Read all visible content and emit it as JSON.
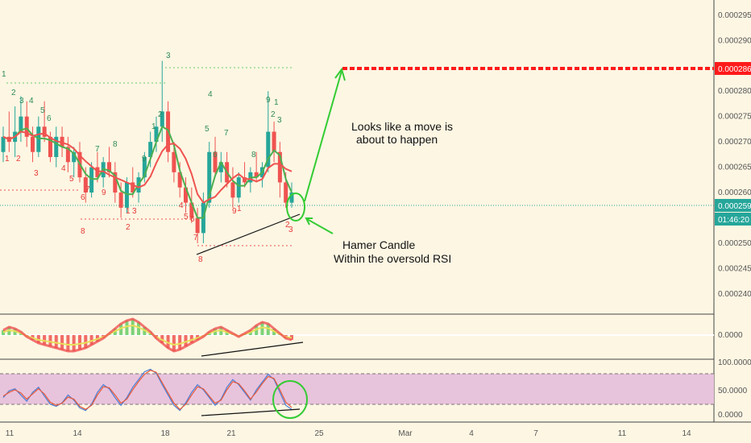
{
  "colors": {
    "background": "#fdf6e3",
    "up_candle": "#26a69a",
    "down_candle": "#ef5350",
    "ma_fast": "#4caf50",
    "ma_slow": "#ef5350",
    "target_line": "#ff1a1a",
    "current_price_bg": "#26a69a",
    "annotation_arrow": "#33cc33",
    "rsi_band": "#e8c3dc",
    "rsi_line_blue": "#4a7fd6",
    "rsi_line_red": "#e85a3a",
    "td_setup_green": "#2e8b57",
    "td_setup_red": "#e53935"
  },
  "price_axis": {
    "ticks": [
      "0.000295",
      "0.000290",
      "0.000285",
      "0.000280",
      "0.000275",
      "0.000270",
      "0.000265",
      "0.000260",
      "0.000255",
      "0.000250",
      "0.000245",
      "0.000240"
    ],
    "target_label": "0.000286",
    "current_label": "0.000259",
    "countdown_label": "01:46:20"
  },
  "oscillator_axis": {
    "zero_label": "0.0000"
  },
  "rsi_axis": {
    "ticks": [
      "100.0000",
      "50.0000",
      "0.0000"
    ]
  },
  "time_axis": {
    "labels": [
      "11",
      "14",
      "18",
      "21",
      "25",
      "Mar",
      "4",
      "7",
      "11",
      "14"
    ]
  },
  "annotations": {
    "move_line1": "Looks like a move is",
    "move_line2": "about to happen",
    "hammer_line1": "Hamer Candle",
    "hammer_line2": "Within the oversold RSI"
  },
  "chart_data": {
    "type": "candlestick",
    "symbol_quote": "price",
    "ylim": [
      0.000236,
      0.000298
    ],
    "ohlc": [
      [
        0.000268,
        0.000273,
        0.000266,
        0.000271
      ],
      [
        0.000271,
        0.000276,
        0.000268,
        0.00027
      ],
      [
        0.00027,
        0.000277,
        0.000267,
        0.000272
      ],
      [
        0.000272,
        0.000279,
        0.00027,
        0.000275
      ],
      [
        0.000275,
        0.000278,
        0.000269,
        0.000271
      ],
      [
        0.000271,
        0.000273,
        0.000266,
        0.000268
      ],
      [
        0.000268,
        0.000275,
        0.000267,
        0.000273
      ],
      [
        0.000273,
        0.000278,
        0.00027,
        0.000271
      ],
      [
        0.000271,
        0.000272,
        0.000266,
        0.000267
      ],
      [
        0.000267,
        0.000273,
        0.000265,
        0.000271
      ],
      [
        0.000271,
        0.000273,
        0.000267,
        0.000269
      ],
      [
        0.000269,
        0.000271,
        0.000264,
        0.000266
      ],
      [
        0.000266,
        0.000269,
        0.000263,
        0.000268
      ],
      [
        0.000268,
        0.00027,
        0.000262,
        0.000263
      ],
      [
        0.000263,
        0.000265,
        0.000258,
        0.00026
      ],
      [
        0.00026,
        0.000266,
        0.000259,
        0.000265
      ],
      [
        0.000265,
        0.000268,
        0.000262,
        0.000263
      ],
      [
        0.000263,
        0.000267,
        0.000261,
        0.000266
      ],
      [
        0.000266,
        0.000269,
        0.000263,
        0.000264
      ],
      [
        0.000264,
        0.000266,
        0.000258,
        0.00026
      ],
      [
        0.00026,
        0.000262,
        0.000255,
        0.000257
      ],
      [
        0.000257,
        0.000263,
        0.000256,
        0.000262
      ],
      [
        0.000262,
        0.000265,
        0.000259,
        0.00026
      ],
      [
        0.00026,
        0.000264,
        0.000258,
        0.000263
      ],
      [
        0.000263,
        0.000268,
        0.000262,
        0.000267
      ],
      [
        0.000267,
        0.000272,
        0.000265,
        0.00027
      ],
      [
        0.00027,
        0.000275,
        0.000268,
        0.000273
      ],
      [
        0.000273,
        0.000286,
        0.00027,
        0.000276
      ],
      [
        0.000276,
        0.000278,
        0.000266,
        0.000268
      ],
      [
        0.000268,
        0.00027,
        0.000262,
        0.000264
      ],
      [
        0.000264,
        0.000266,
        0.000259,
        0.000261
      ],
      [
        0.000261,
        0.000263,
        0.000256,
        0.000258
      ],
      [
        0.000258,
        0.000261,
        0.000254,
        0.000255
      ],
      [
        0.000255,
        0.000257,
        0.00025,
        0.000252
      ],
      [
        0.000252,
        0.00026,
        0.00025,
        0.000258
      ],
      [
        0.000258,
        0.00027,
        0.000257,
        0.000268
      ],
      [
        0.000268,
        0.000271,
        0.000263,
        0.000264
      ],
      [
        0.000264,
        0.000268,
        0.000262,
        0.000266
      ],
      [
        0.000266,
        0.000268,
        0.000261,
        0.000262
      ],
      [
        0.000262,
        0.000265,
        0.000257,
        0.000259
      ],
      [
        0.000259,
        0.000264,
        0.000258,
        0.000263
      ],
      [
        0.000263,
        0.000266,
        0.000261,
        0.000262
      ],
      [
        0.000262,
        0.000265,
        0.00026,
        0.000264
      ],
      [
        0.000264,
        0.000268,
        0.000262,
        0.000263
      ],
      [
        0.000263,
        0.000266,
        0.000261,
        0.000265
      ],
      [
        0.000265,
        0.00028,
        0.000264,
        0.000272
      ],
      [
        0.000272,
        0.000274,
        0.000266,
        0.000268
      ],
      [
        0.000268,
        0.00027,
        0.000259,
        0.000262
      ],
      [
        0.000262,
        0.000264,
        0.000257,
        0.000258
      ],
      [
        0.000258,
        0.000262,
        0.000257,
        0.00026
      ]
    ],
    "target_price": 0.000286,
    "current_price": 0.000259,
    "oscillator": [
      0.3,
      0.5,
      0.4,
      0.2,
      -0.1,
      -0.3,
      -0.5,
      -0.6,
      -0.7,
      -0.8,
      -0.9,
      -1.0,
      -1.0,
      -0.9,
      -0.8,
      -0.6,
      -0.4,
      -0.2,
      0.1,
      0.4,
      0.7,
      0.9,
      1.0,
      0.8,
      0.5,
      0.2,
      -0.2,
      -0.5,
      -0.8,
      -1.0,
      -0.9,
      -0.7,
      -0.5,
      -0.3,
      -0.1,
      0.2,
      0.4,
      0.5,
      0.3,
      0.1,
      -0.1,
      0.1,
      0.3,
      0.6,
      0.8,
      0.7,
      0.4,
      0.1,
      -0.2,
      -0.3
    ],
    "rsi_blue": [
      35,
      48,
      52,
      40,
      28,
      45,
      55,
      38,
      22,
      18,
      25,
      40,
      30,
      15,
      10,
      22,
      45,
      60,
      52,
      35,
      20,
      35,
      55,
      70,
      85,
      90,
      82,
      60,
      40,
      20,
      10,
      25,
      45,
      60,
      50,
      35,
      20,
      32,
      55,
      70,
      60,
      45,
      30,
      50,
      65,
      80,
      70,
      45,
      20,
      12
    ],
    "rsi_red": [
      38,
      45,
      50,
      44,
      32,
      42,
      52,
      42,
      26,
      20,
      24,
      36,
      32,
      18,
      12,
      20,
      40,
      56,
      54,
      40,
      24,
      32,
      50,
      66,
      80,
      88,
      84,
      64,
      44,
      24,
      12,
      22,
      40,
      56,
      52,
      38,
      24,
      30,
      50,
      66,
      62,
      48,
      32,
      46,
      62,
      76,
      72,
      50,
      26,
      16
    ]
  }
}
